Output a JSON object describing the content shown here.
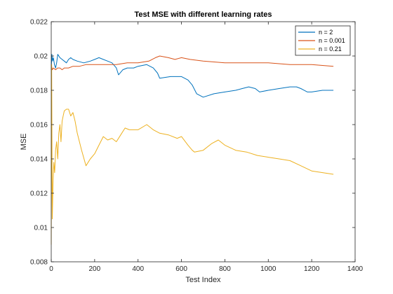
{
  "chart_data": {
    "type": "line",
    "title": "Test MSE with different learning rates",
    "xlabel": "Test Index",
    "ylabel": "MSE",
    "xlim": [
      0,
      1400
    ],
    "ylim": [
      0.008,
      0.022
    ],
    "xticks": [
      0,
      200,
      400,
      600,
      800,
      1000,
      1200,
      1400
    ],
    "xtick_labels": [
      "0",
      "200",
      "400",
      "600",
      "800",
      "1000",
      "1200",
      "1400"
    ],
    "yticks": [
      0.008,
      0.01,
      0.012,
      0.014,
      0.016,
      0.018,
      0.02,
      0.022
    ],
    "ytick_labels": [
      "0.008",
      "0.01",
      "0.012",
      "0.014",
      "0.016",
      "0.018",
      "0.02",
      "0.022"
    ],
    "grid": false,
    "legend_position": "top-right",
    "series": [
      {
        "name": "n = 2",
        "color": "#0072BD",
        "points": [
          [
            0,
            0.0192
          ],
          [
            3,
            0.0201
          ],
          [
            6,
            0.0197
          ],
          [
            10,
            0.0199
          ],
          [
            15,
            0.0195
          ],
          [
            20,
            0.0193
          ],
          [
            25,
            0.0196
          ],
          [
            30,
            0.0201
          ],
          [
            40,
            0.0199
          ],
          [
            50,
            0.0198
          ],
          [
            60,
            0.0197
          ],
          [
            70,
            0.0196
          ],
          [
            80,
            0.0198
          ],
          [
            90,
            0.0199
          ],
          [
            100,
            0.0198
          ],
          [
            120,
            0.0197
          ],
          [
            150,
            0.0196
          ],
          [
            180,
            0.0197
          ],
          [
            200,
            0.0198
          ],
          [
            220,
            0.0199
          ],
          [
            240,
            0.0198
          ],
          [
            260,
            0.0197
          ],
          [
            280,
            0.0196
          ],
          [
            300,
            0.0193
          ],
          [
            310,
            0.0189
          ],
          [
            330,
            0.0192
          ],
          [
            350,
            0.0193
          ],
          [
            380,
            0.0193
          ],
          [
            400,
            0.0194
          ],
          [
            440,
            0.0195
          ],
          [
            470,
            0.0193
          ],
          [
            490,
            0.019
          ],
          [
            500,
            0.0187
          ],
          [
            550,
            0.0188
          ],
          [
            600,
            0.0188
          ],
          [
            630,
            0.0186
          ],
          [
            650,
            0.0183
          ],
          [
            670,
            0.0178
          ],
          [
            700,
            0.0176
          ],
          [
            750,
            0.0178
          ],
          [
            800,
            0.0179
          ],
          [
            850,
            0.018
          ],
          [
            880,
            0.0181
          ],
          [
            910,
            0.0182
          ],
          [
            940,
            0.0181
          ],
          [
            960,
            0.0179
          ],
          [
            1000,
            0.018
          ],
          [
            1050,
            0.0181
          ],
          [
            1100,
            0.0182
          ],
          [
            1130,
            0.0182
          ],
          [
            1150,
            0.0181
          ],
          [
            1180,
            0.0179
          ],
          [
            1200,
            0.0179
          ],
          [
            1250,
            0.018
          ],
          [
            1300,
            0.018
          ]
        ]
      },
      {
        "name": "n = 0.001",
        "color": "#D95319",
        "points": [
          [
            0,
            0.0195
          ],
          [
            5,
            0.0192
          ],
          [
            10,
            0.0193
          ],
          [
            20,
            0.0192
          ],
          [
            30,
            0.0193
          ],
          [
            40,
            0.0193
          ],
          [
            50,
            0.0192
          ],
          [
            60,
            0.0193
          ],
          [
            80,
            0.0193
          ],
          [
            100,
            0.0194
          ],
          [
            130,
            0.0194
          ],
          [
            160,
            0.0195
          ],
          [
            200,
            0.0195
          ],
          [
            250,
            0.0195
          ],
          [
            300,
            0.0195
          ],
          [
            350,
            0.0196
          ],
          [
            400,
            0.0196
          ],
          [
            450,
            0.0197
          ],
          [
            480,
            0.0199
          ],
          [
            500,
            0.02
          ],
          [
            540,
            0.0199
          ],
          [
            570,
            0.0198
          ],
          [
            600,
            0.0199
          ],
          [
            640,
            0.0198
          ],
          [
            700,
            0.0197
          ],
          [
            800,
            0.0196
          ],
          [
            900,
            0.0196
          ],
          [
            1000,
            0.0196
          ],
          [
            1100,
            0.0195
          ],
          [
            1200,
            0.0195
          ],
          [
            1300,
            0.0194
          ]
        ]
      },
      {
        "name": "n = 0.21",
        "color": "#EDB120",
        "points": [
          [
            0,
            0.009
          ],
          [
            2,
            0.0195
          ],
          [
            5,
            0.0105
          ],
          [
            8,
            0.0125
          ],
          [
            12,
            0.0138
          ],
          [
            16,
            0.0132
          ],
          [
            20,
            0.0145
          ],
          [
            25,
            0.015
          ],
          [
            30,
            0.014
          ],
          [
            35,
            0.0155
          ],
          [
            40,
            0.016
          ],
          [
            45,
            0.015
          ],
          [
            50,
            0.0162
          ],
          [
            55,
            0.0165
          ],
          [
            60,
            0.0168
          ],
          [
            70,
            0.0169
          ],
          [
            80,
            0.0169
          ],
          [
            90,
            0.0165
          ],
          [
            100,
            0.0167
          ],
          [
            110,
            0.0162
          ],
          [
            120,
            0.0155
          ],
          [
            140,
            0.0145
          ],
          [
            160,
            0.0136
          ],
          [
            180,
            0.014
          ],
          [
            200,
            0.0143
          ],
          [
            220,
            0.0148
          ],
          [
            240,
            0.0153
          ],
          [
            260,
            0.0151
          ],
          [
            280,
            0.0152
          ],
          [
            300,
            0.015
          ],
          [
            320,
            0.0154
          ],
          [
            340,
            0.0158
          ],
          [
            360,
            0.0157
          ],
          [
            400,
            0.0157
          ],
          [
            440,
            0.016
          ],
          [
            470,
            0.0157
          ],
          [
            500,
            0.0155
          ],
          [
            540,
            0.0154
          ],
          [
            580,
            0.0152
          ],
          [
            600,
            0.0153
          ],
          [
            630,
            0.0148
          ],
          [
            650,
            0.0145
          ],
          [
            660,
            0.0144
          ],
          [
            700,
            0.0145
          ],
          [
            740,
            0.0149
          ],
          [
            770,
            0.0151
          ],
          [
            800,
            0.0148
          ],
          [
            850,
            0.0145
          ],
          [
            900,
            0.0144
          ],
          [
            950,
            0.0142
          ],
          [
            1000,
            0.0141
          ],
          [
            1050,
            0.014
          ],
          [
            1100,
            0.0139
          ],
          [
            1150,
            0.0136
          ],
          [
            1200,
            0.0133
          ],
          [
            1250,
            0.0132
          ],
          [
            1300,
            0.0131
          ]
        ]
      }
    ]
  }
}
